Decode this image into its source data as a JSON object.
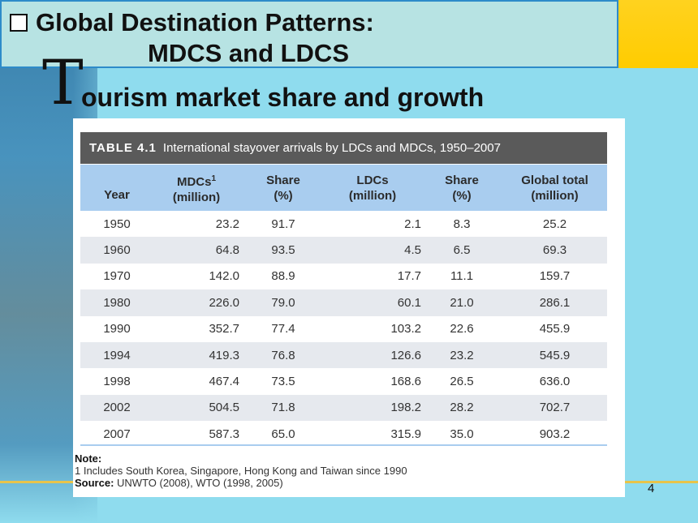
{
  "slide": {
    "title_line1": "Global Destination Patterns:",
    "title_line2": "MDCS and LDCS",
    "big_letter": "T",
    "subtitle": "ourism market share and growth",
    "page_number": "4"
  },
  "table": {
    "label": "TABLE 4.1",
    "caption": "International stayover arrivals by LDCs and MDCs, 1950–2007",
    "headers": {
      "year": "Year",
      "mdcs_line1": "MDCs",
      "mdcs_sup": "1",
      "mdcs_line2": "(million)",
      "share1_line1": "Share",
      "share1_line2": "(%)",
      "ldcs_line1": "LDCs",
      "ldcs_line2": "(million)",
      "share2_line1": "Share",
      "share2_line2": "(%)",
      "total_line1": "Global total",
      "total_line2": "(million)"
    },
    "rows": [
      [
        "1950",
        "23.2",
        "91.7",
        "2.1",
        "8.3",
        "25.2"
      ],
      [
        "1960",
        "64.8",
        "93.5",
        "4.5",
        "6.5",
        "69.3"
      ],
      [
        "1970",
        "142.0",
        "88.9",
        "17.7",
        "11.1",
        "159.7"
      ],
      [
        "1980",
        "226.0",
        "79.0",
        "60.1",
        "21.0",
        "286.1"
      ],
      [
        "1990",
        "352.7",
        "77.4",
        "103.2",
        "22.6",
        "455.9"
      ],
      [
        "1994",
        "419.3",
        "76.8",
        "126.6",
        "23.2",
        "545.9"
      ],
      [
        "1998",
        "467.4",
        "73.5",
        "168.6",
        "26.5",
        "636.0"
      ],
      [
        "2002",
        "504.5",
        "71.8",
        "198.2",
        "28.2",
        "702.7"
      ],
      [
        "2007",
        "587.3",
        "65.0",
        "315.9",
        "35.0",
        "903.2"
      ]
    ],
    "note_label": "Note:",
    "note_text": "1 Includes South Korea, Singapore, Hong Kong and Taiwan since 1990",
    "source_label": "Source:",
    "source_text": " UNWTO (2008), WTO (1998, 2005)"
  },
  "colors": {
    "title_box_bg": "#b7e3e3",
    "title_box_border": "#2d8bc9",
    "table_header_bg": "#a9cdef",
    "caption_bg": "#5a5a5a",
    "slide_bg": "#8fdcee",
    "accent_yellow": "#ffcc00"
  }
}
